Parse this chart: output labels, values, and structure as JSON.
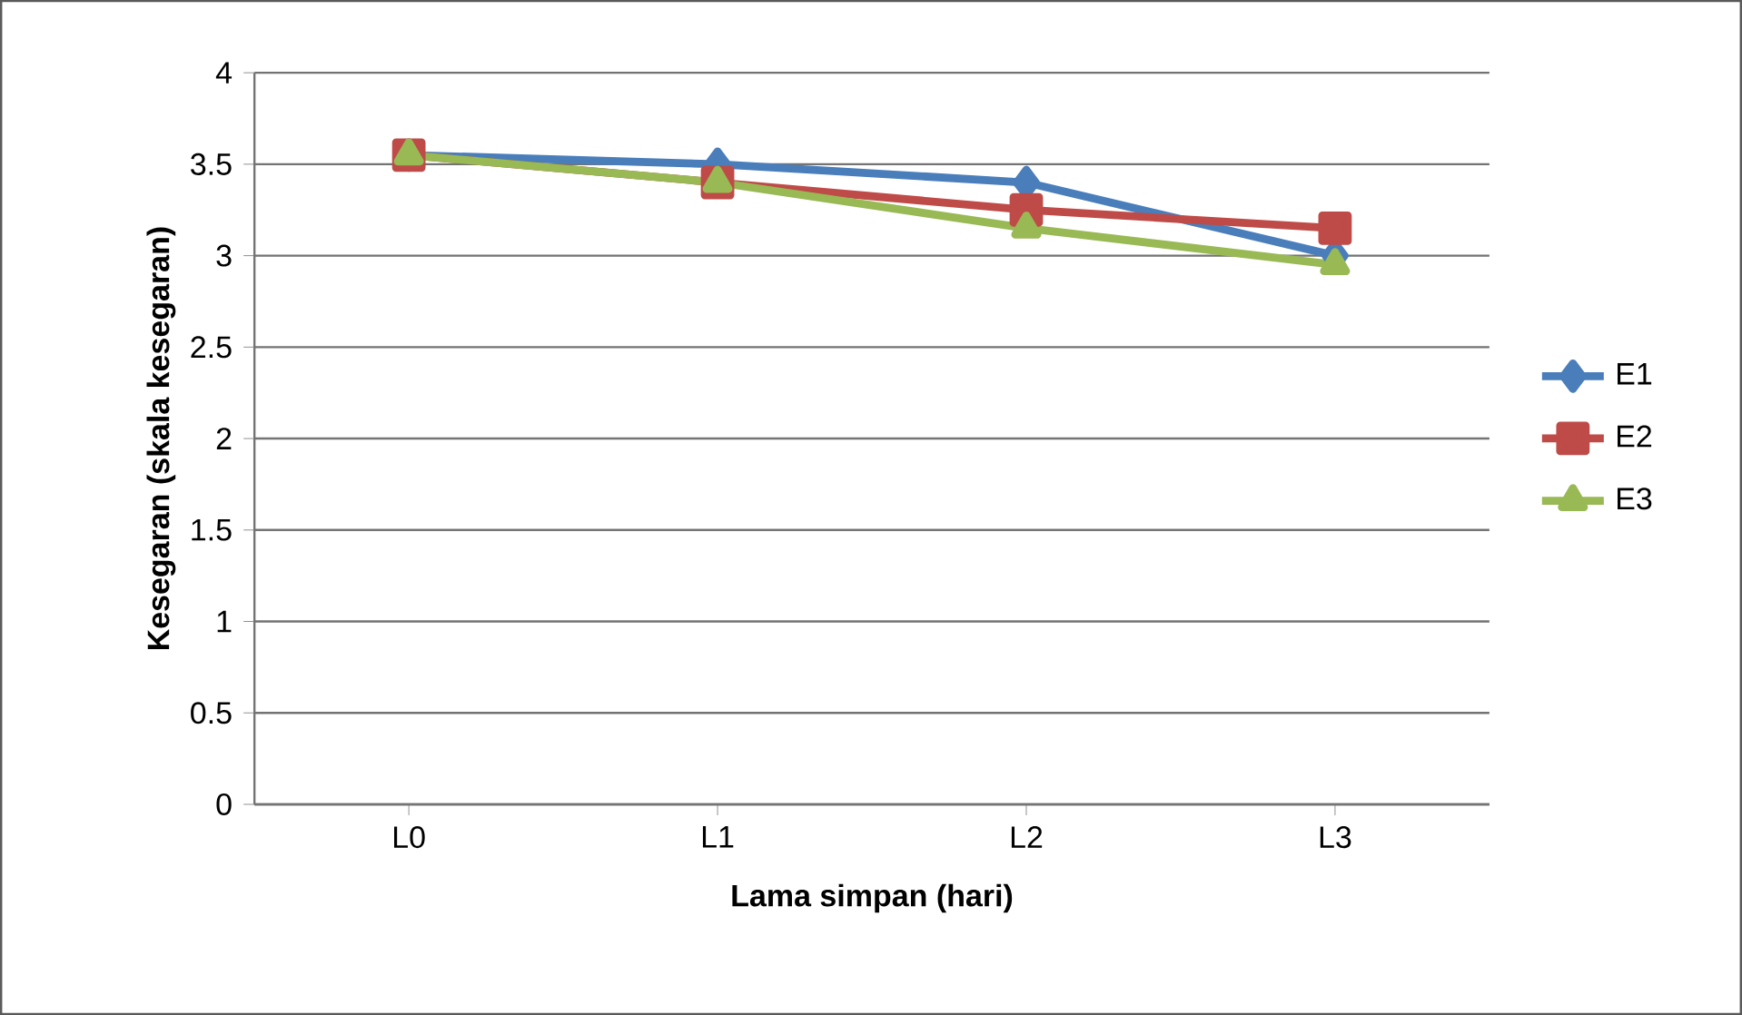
{
  "chart_data": {
    "type": "line",
    "xlabel": "Lama simpan (hari)",
    "ylabel": "Kesegaran (skala kesegaran)",
    "categories": [
      "L0",
      "L1",
      "L2",
      "L3"
    ],
    "series": [
      {
        "name": "E1",
        "color": "#4a7ebb",
        "marker": "diamond",
        "values": [
          3.55,
          3.5,
          3.4,
          3.0
        ]
      },
      {
        "name": "E2",
        "color": "#be4b48",
        "marker": "square",
        "values": [
          3.55,
          3.4,
          3.25,
          3.15
        ]
      },
      {
        "name": "E3",
        "color": "#98b954",
        "marker": "triangle",
        "values": [
          3.55,
          3.4,
          3.15,
          2.95
        ]
      }
    ],
    "ylim": [
      0,
      4
    ],
    "yticks": [
      0,
      0.5,
      1,
      1.5,
      2,
      2.5,
      3,
      3.5,
      4
    ],
    "grid": "y",
    "legend": "right"
  }
}
